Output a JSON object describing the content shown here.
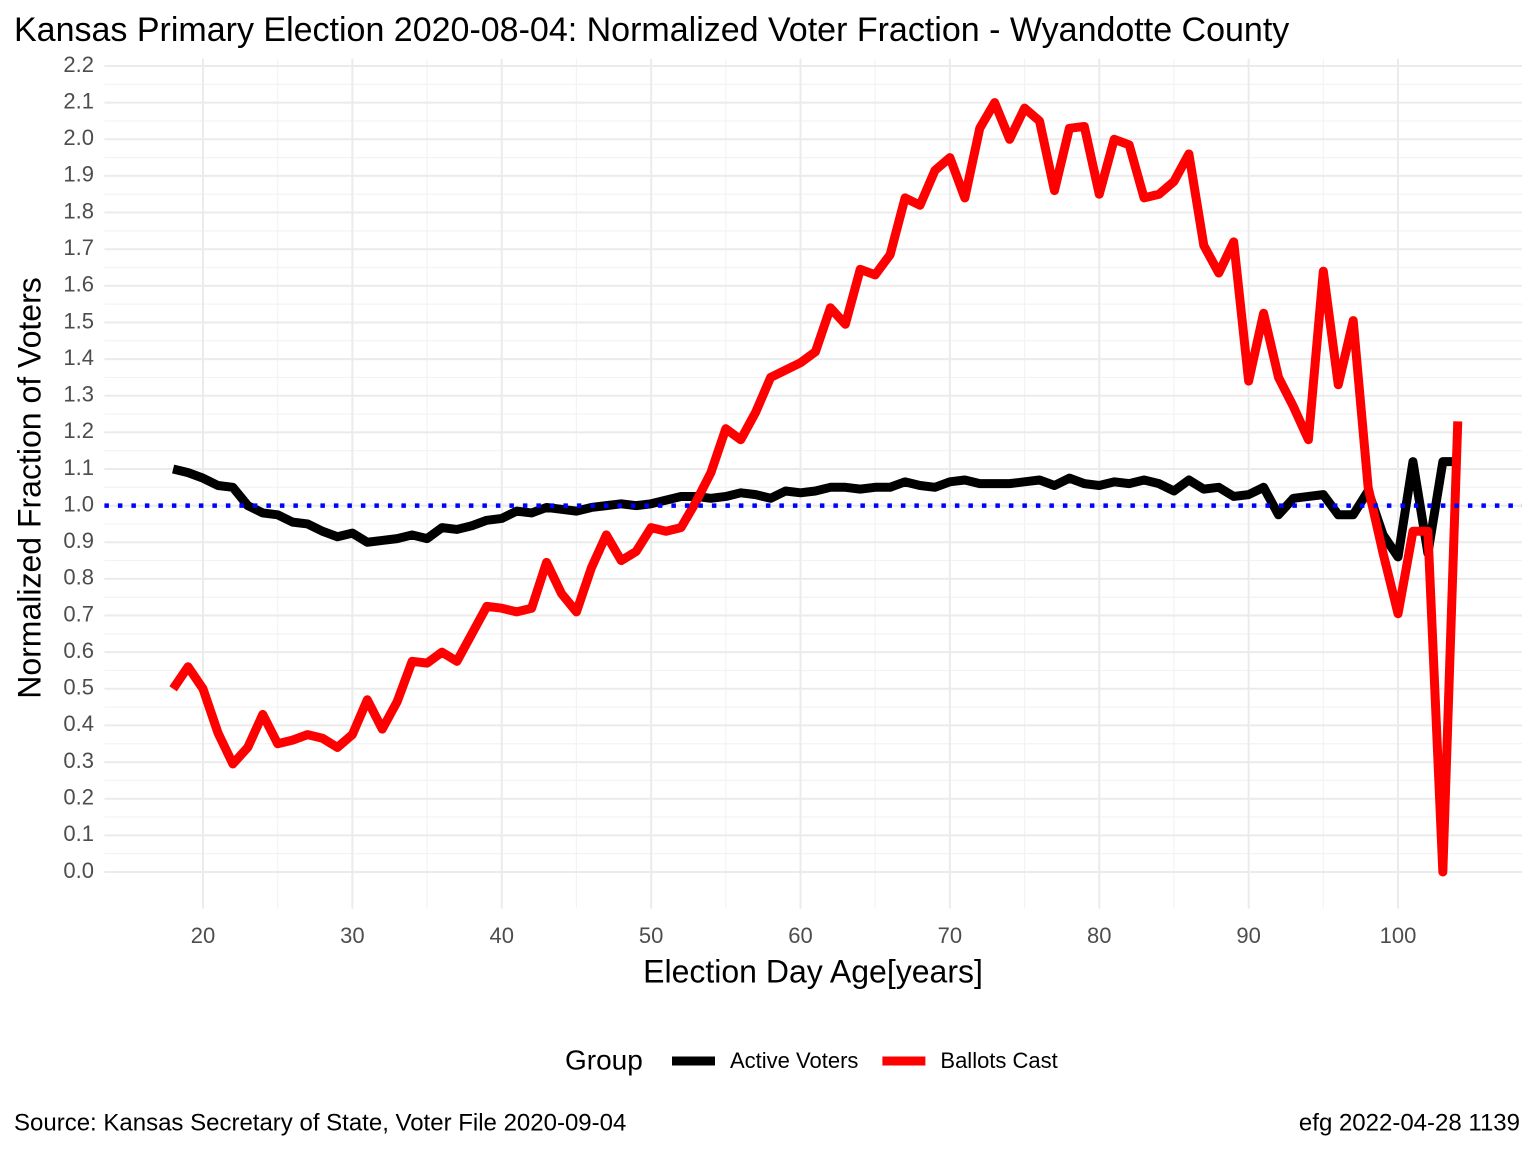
{
  "chart_data": {
    "type": "line",
    "title": "Kansas Primary Election 2020-08-04:  Normalized Voter Fraction - Wyandotte County",
    "x_label": "Election Day Age[years]",
    "y_label": "Normalized Fraction of Voters",
    "legend_title": "Group",
    "legend_position": "bottom",
    "caption_left": "Source:  Kansas Secretary of State, Voter File  2020-09-04",
    "caption_right": "efg 2022-04-28 1139",
    "grid": true,
    "hline": {
      "value": 1.0,
      "color": "#0000ff",
      "style": "dotted"
    },
    "xlim": [
      13.4,
      108.3
    ],
    "ylim": [
      -0.1,
      2.22
    ],
    "xticks": [
      20,
      30,
      40,
      50,
      60,
      70,
      80,
      90,
      100
    ],
    "yticks": [
      {
        "value": 0,
        "label": "0.0"
      },
      0.1,
      0.2,
      0.3,
      0.4,
      0.5,
      0.6,
      0.7,
      0.8,
      0.9,
      {
        "value": 1,
        "label": "1.0"
      },
      1.1,
      1.2,
      1.3,
      1.4,
      1.5,
      1.6,
      1.7,
      1.8,
      1.9,
      {
        "value": 2,
        "label": "2.0"
      },
      2.1,
      2.2
    ],
    "x": [
      18,
      19,
      20,
      21,
      22,
      23,
      24,
      25,
      26,
      27,
      28,
      29,
      30,
      31,
      32,
      33,
      34,
      35,
      36,
      37,
      38,
      39,
      40,
      41,
      42,
      43,
      44,
      45,
      46,
      47,
      48,
      49,
      50,
      51,
      52,
      53,
      54,
      55,
      56,
      57,
      58,
      59,
      60,
      61,
      62,
      63,
      64,
      65,
      66,
      67,
      68,
      69,
      70,
      71,
      72,
      73,
      74,
      75,
      76,
      77,
      78,
      79,
      80,
      81,
      82,
      83,
      84,
      85,
      86,
      87,
      88,
      89,
      90,
      91,
      92,
      93,
      94,
      95,
      96,
      97,
      98,
      99,
      100,
      101,
      102,
      103,
      104
    ],
    "series": [
      {
        "name": "Active Voters",
        "color": "#000000",
        "values": [
          1.1,
          1.09,
          1.075,
          1.055,
          1.05,
          1.0,
          0.98,
          0.975,
          0.955,
          0.95,
          0.93,
          0.915,
          0.925,
          0.9,
          0.905,
          0.91,
          0.92,
          0.91,
          0.94,
          0.935,
          0.945,
          0.96,
          0.965,
          0.985,
          0.98,
          0.995,
          0.99,
          0.985,
          0.995,
          1.0,
          1.005,
          1.0,
          1.005,
          1.015,
          1.025,
          1.025,
          1.02,
          1.025,
          1.035,
          1.03,
          1.02,
          1.04,
          1.035,
          1.04,
          1.05,
          1.05,
          1.045,
          1.05,
          1.05,
          1.065,
          1.055,
          1.05,
          1.065,
          1.07,
          1.06,
          1.06,
          1.06,
          1.065,
          1.07,
          1.055,
          1.075,
          1.06,
          1.055,
          1.065,
          1.06,
          1.07,
          1.06,
          1.04,
          1.07,
          1.045,
          1.05,
          1.025,
          1.03,
          1.05,
          0.975,
          1.02,
          1.025,
          1.03,
          0.975,
          0.975,
          1.04,
          0.92,
          0.86,
          1.12,
          0.87,
          1.12,
          1.12
        ]
      },
      {
        "name": "Ballots Cast",
        "color": "#ff0000",
        "values": [
          0.5,
          0.56,
          0.5,
          0.38,
          0.295,
          0.34,
          0.43,
          0.35,
          0.36,
          0.375,
          0.365,
          0.34,
          0.375,
          0.47,
          0.39,
          0.465,
          0.575,
          0.57,
          0.6,
          0.575,
          0.65,
          0.725,
          0.72,
          0.71,
          0.72,
          0.845,
          0.76,
          0.71,
          0.83,
          0.92,
          0.85,
          0.875,
          0.94,
          0.93,
          0.94,
          1.01,
          1.09,
          1.21,
          1.18,
          1.255,
          1.35,
          1.37,
          1.39,
          1.42,
          1.54,
          1.495,
          1.645,
          1.63,
          1.685,
          1.84,
          1.82,
          1.915,
          1.95,
          1.84,
          2.03,
          2.1,
          2.0,
          2.085,
          2.05,
          1.86,
          2.03,
          2.035,
          1.85,
          2.0,
          1.985,
          1.84,
          1.85,
          1.885,
          1.96,
          1.71,
          1.635,
          1.72,
          1.34,
          1.525,
          1.35,
          1.27,
          1.18,
          1.64,
          1.33,
          1.505,
          1.05,
          0.87,
          0.705,
          0.93,
          0.93,
          0.0,
          1.23
        ]
      }
    ]
  }
}
